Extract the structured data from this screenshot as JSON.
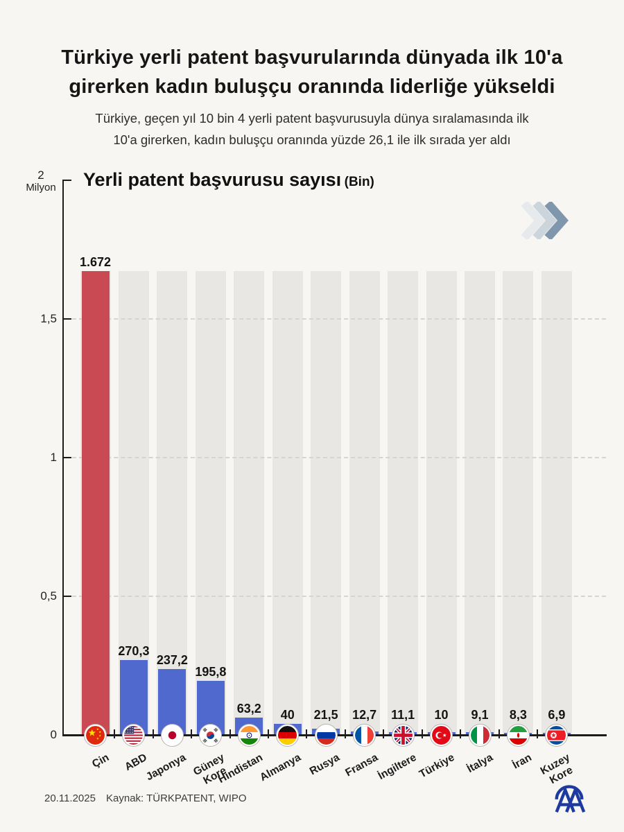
{
  "header": {
    "title_line1": "Türkiye yerli patent başvurularında dünyada ilk 10'a",
    "title_line2": "girerken kadın buluşçu oranında liderliğe yükseldi",
    "subtitle_line1": "Türkiye, geçen yıl 10 bin 4 yerli patent başvurusuyla dünya sıralamasında ilk",
    "subtitle_line2": "10'a girerken, kadın buluşçu oranında yüzde 26,1 ile ilk sırada yer aldı"
  },
  "chart": {
    "title": "Yerli patent başvurusu sayısı",
    "unit": "(Bin)",
    "y_axis": {
      "top_value": "2",
      "top_unit": "Milyon",
      "top_bin": 2000,
      "ticks": [
        {
          "label": "1,5",
          "value": 1500,
          "grid": true
        },
        {
          "label": "1",
          "value": 1000,
          "grid": true
        },
        {
          "label": "0,5",
          "value": 500,
          "grid": true
        },
        {
          "label": "0",
          "value": 0,
          "grid": false
        }
      ]
    }
  },
  "chart_data": {
    "type": "bar",
    "title": "Yerli patent başvurusu sayısı (Bin)",
    "ylabel": "Milyon",
    "ylim_bin": [
      0,
      2000
    ],
    "grid": "horizontal dashed at 500, 1000, 1500 bin",
    "legend_position": "none",
    "categories": [
      "Çin",
      "ABD",
      "Japonya",
      "Güney Kore",
      "Hindistan",
      "Almanya",
      "Rusya",
      "Fransa",
      "İngiltere",
      "Türkiye",
      "İtalya",
      "İran",
      "Kuzey Kore"
    ],
    "values": [
      1672,
      270.3,
      237.2,
      195.8,
      63.2,
      40,
      21.5,
      12.7,
      11.1,
      10,
      9.1,
      8.3,
      6.9
    ],
    "value_labels": [
      "1.672",
      "270,3",
      "237,2",
      "195,8",
      "63,2",
      "40",
      "21,5",
      "12,7",
      "11,1",
      "10",
      "9,1",
      "8,3",
      "6,9"
    ],
    "flags": [
      "china",
      "usa",
      "japan",
      "south-korea",
      "india",
      "germany",
      "russia",
      "france",
      "uk",
      "turkiye",
      "italy",
      "iran",
      "north-korea"
    ],
    "highlight_category": "Çin",
    "highlight_color": "#c94a52",
    "bar_color": "#5069ce",
    "bg_column_color": "#e9e7e4"
  },
  "decor": {
    "chevron_icon": "triple-chevron-right-icon",
    "chevron_colors": [
      "#e7eaec",
      "#ccd4dc",
      "#7f97ac"
    ],
    "logo_color": "#1e3a9e"
  },
  "footer": {
    "date": "20.11.2025",
    "source": "Kaynak: TÜRKPATENT, WIPO"
  }
}
